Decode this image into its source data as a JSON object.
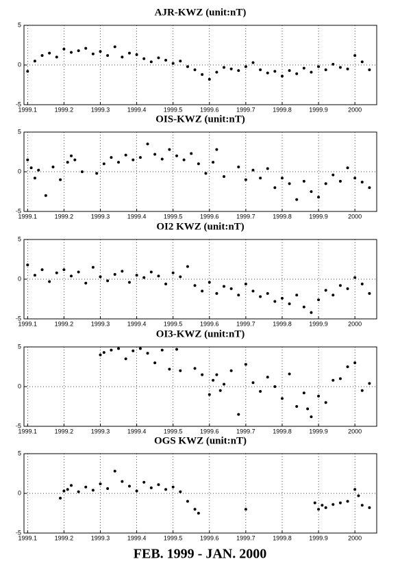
{
  "chart_data": [
    {
      "type": "scatter",
      "title": "AJR-KWZ (unit:nT)",
      "color": "#000000",
      "grid": true,
      "xlim": [
        1999.09,
        2000.06
      ],
      "ylim": [
        -5,
        5
      ],
      "xticks": [
        1999.1,
        1999.2,
        1999.3,
        1999.4,
        1999.5,
        1999.6,
        1999.7,
        1999.8,
        1999.9,
        2000
      ],
      "yticks": [
        -5,
        0,
        5
      ],
      "x": [
        1999.1,
        1999.12,
        1999.14,
        1999.16,
        1999.18,
        1999.2,
        1999.22,
        1999.24,
        1999.26,
        1999.28,
        1999.3,
        1999.32,
        1999.34,
        1999.36,
        1999.38,
        1999.4,
        1999.42,
        1999.44,
        1999.46,
        1999.48,
        1999.5,
        1999.52,
        1999.54,
        1999.56,
        1999.58,
        1999.6,
        1999.62,
        1999.64,
        1999.66,
        1999.68,
        1999.7,
        1999.72,
        1999.74,
        1999.76,
        1999.78,
        1999.8,
        1999.82,
        1999.84,
        1999.86,
        1999.88,
        1999.9,
        1999.92,
        1999.94,
        1999.96,
        1999.98,
        2000.0,
        2000.02,
        2000.04
      ],
      "values": [
        -0.8,
        0.5,
        1.2,
        1.5,
        1.0,
        2.0,
        1.6,
        1.8,
        2.1,
        1.4,
        1.7,
        1.2,
        2.3,
        1.0,
        1.5,
        1.3,
        0.8,
        0.4,
        0.9,
        0.6,
        0.2,
        0.5,
        -0.2,
        -0.6,
        -1.2,
        -1.8,
        -0.9,
        -0.3,
        -0.5,
        -0.7,
        -0.2,
        0.3,
        -0.6,
        -1.0,
        -0.8,
        -1.4,
        -0.7,
        -1.1,
        -0.4,
        -0.9,
        -0.2,
        -0.6,
        0.1,
        -0.3,
        -0.5,
        1.2,
        0.4,
        -0.6
      ]
    },
    {
      "type": "scatter",
      "title": "OIS-KWZ (unit:nT)",
      "color": "#000000",
      "grid": true,
      "xlim": [
        1999.09,
        2000.06
      ],
      "ylim": [
        -5,
        5
      ],
      "xticks": [
        1999.1,
        1999.2,
        1999.3,
        1999.4,
        1999.5,
        1999.6,
        1999.7,
        1999.8,
        1999.9,
        2000
      ],
      "yticks": [
        -5,
        0,
        5
      ],
      "x": [
        1999.1,
        1999.11,
        1999.12,
        1999.13,
        1999.15,
        1999.17,
        1999.19,
        1999.21,
        1999.22,
        1999.23,
        1999.25,
        1999.29,
        1999.31,
        1999.33,
        1999.35,
        1999.37,
        1999.39,
        1999.41,
        1999.43,
        1999.45,
        1999.47,
        1999.49,
        1999.51,
        1999.53,
        1999.55,
        1999.57,
        1999.59,
        1999.61,
        1999.62,
        1999.64,
        1999.68,
        1999.7,
        1999.72,
        1999.74,
        1999.76,
        1999.78,
        1999.8,
        1999.82,
        1999.84,
        1999.86,
        1999.88,
        1999.9,
        1999.92,
        1999.94,
        1999.96,
        1999.98,
        2000.0,
        2000.02,
        2000.04
      ],
      "values": [
        1.5,
        0.5,
        -0.8,
        0.2,
        -3.0,
        0.6,
        -1.0,
        1.2,
        2.0,
        1.5,
        0.0,
        -0.2,
        1.0,
        1.8,
        1.2,
        2.1,
        1.5,
        1.8,
        3.5,
        2.2,
        1.6,
        2.8,
        2.0,
        1.5,
        2.3,
        1.0,
        -0.2,
        1.2,
        2.8,
        -0.6,
        0.6,
        -1.0,
        0.2,
        -0.8,
        0.4,
        -2.0,
        -0.8,
        -1.5,
        -3.5,
        -1.2,
        -2.5,
        -3.2,
        -1.5,
        -0.4,
        -1.2,
        0.5,
        -0.8,
        -1.3,
        -2.0
      ]
    },
    {
      "type": "scatter",
      "title": "OI2 KWZ (unit:nT)",
      "color": "#000000",
      "grid": true,
      "xlim": [
        1999.09,
        2000.06
      ],
      "ylim": [
        -5,
        5
      ],
      "xticks": [
        1999.1,
        1999.2,
        1999.3,
        1999.4,
        1999.5,
        1999.6,
        1999.7,
        1999.8,
        1999.9,
        2000
      ],
      "yticks": [
        -5,
        0,
        5
      ],
      "x": [
        1999.1,
        1999.12,
        1999.14,
        1999.16,
        1999.18,
        1999.2,
        1999.22,
        1999.24,
        1999.26,
        1999.28,
        1999.3,
        1999.32,
        1999.34,
        1999.36,
        1999.38,
        1999.4,
        1999.42,
        1999.44,
        1999.46,
        1999.48,
        1999.5,
        1999.52,
        1999.54,
        1999.56,
        1999.58,
        1999.6,
        1999.62,
        1999.64,
        1999.66,
        1999.68,
        1999.7,
        1999.72,
        1999.74,
        1999.76,
        1999.78,
        1999.8,
        1999.82,
        1999.84,
        1999.86,
        1999.88,
        1999.9,
        1999.92,
        1999.94,
        1999.96,
        1999.98,
        2000.0,
        2000.02,
        2000.04
      ],
      "values": [
        1.8,
        0.5,
        1.2,
        -0.3,
        0.8,
        1.2,
        0.4,
        0.9,
        -0.5,
        1.5,
        0.3,
        -0.2,
        0.6,
        1.0,
        -0.4,
        0.5,
        0.2,
        0.9,
        0.4,
        -0.6,
        0.8,
        0.3,
        1.6,
        -0.8,
        -1.5,
        -0.4,
        -1.8,
        -0.9,
        -1.2,
        -2.0,
        -0.6,
        -1.5,
        -2.2,
        -1.8,
        -2.8,
        -2.4,
        -3.1,
        -2.0,
        -3.5,
        -4.2,
        -2.6,
        -1.4,
        -2.0,
        -0.8,
        -1.2,
        0.2,
        -0.6,
        -1.8
      ]
    },
    {
      "type": "scatter",
      "title": "OI3-KWZ (unit:nT)",
      "color": "#000000",
      "grid": true,
      "xlim": [
        1999.09,
        2000.06
      ],
      "ylim": [
        -5,
        5
      ],
      "xticks": [
        1999.1,
        1999.2,
        1999.3,
        1999.4,
        1999.5,
        1999.6,
        1999.7,
        1999.8,
        1999.9,
        2000
      ],
      "yticks": [
        -5,
        0,
        5
      ],
      "x": [
        1999.3,
        1999.31,
        1999.33,
        1999.35,
        1999.37,
        1999.39,
        1999.41,
        1999.43,
        1999.45,
        1999.47,
        1999.49,
        1999.51,
        1999.52,
        1999.56,
        1999.58,
        1999.6,
        1999.61,
        1999.62,
        1999.63,
        1999.64,
        1999.66,
        1999.68,
        1999.7,
        1999.72,
        1999.74,
        1999.76,
        1999.78,
        1999.8,
        1999.82,
        1999.84,
        1999.86,
        1999.87,
        1999.88,
        1999.9,
        1999.92,
        1999.94,
        1999.96,
        1999.98,
        2000.0,
        2000.02,
        2000.04
      ],
      "values": [
        4.0,
        4.3,
        4.6,
        4.8,
        3.5,
        4.5,
        4.8,
        4.2,
        3.0,
        4.6,
        2.2,
        4.7,
        2.0,
        2.3,
        1.5,
        -1.0,
        0.8,
        1.5,
        -0.5,
        0.3,
        2.0,
        -3.5,
        2.8,
        0.5,
        -0.6,
        1.2,
        0.0,
        -1.5,
        1.6,
        -2.5,
        -0.8,
        -2.8,
        -3.8,
        -1.2,
        -2.0,
        0.8,
        1.0,
        2.5,
        3.0,
        -0.5,
        0.4
      ]
    },
    {
      "type": "scatter",
      "title": "OGS KWZ (unit:nT)",
      "color": "#000000",
      "grid": true,
      "xlim": [
        1999.09,
        2000.06
      ],
      "ylim": [
        -5,
        5
      ],
      "xticks": [
        1999.1,
        1999.2,
        1999.3,
        1999.4,
        1999.5,
        1999.6,
        1999.7,
        1999.8,
        1999.9,
        2000
      ],
      "yticks": [
        -5,
        0,
        5
      ],
      "x": [
        1999.19,
        1999.2,
        1999.21,
        1999.22,
        1999.24,
        1999.26,
        1999.28,
        1999.3,
        1999.32,
        1999.34,
        1999.36,
        1999.38,
        1999.4,
        1999.42,
        1999.44,
        1999.46,
        1999.48,
        1999.5,
        1999.52,
        1999.54,
        1999.56,
        1999.57,
        1999.7,
        1999.89,
        1999.9,
        1999.91,
        1999.92,
        1999.94,
        1999.96,
        1999.98,
        2000.0,
        2000.01,
        2000.02,
        2000.04
      ],
      "values": [
        -0.6,
        0.3,
        0.5,
        1.0,
        0.2,
        0.8,
        0.4,
        1.2,
        0.6,
        2.8,
        1.5,
        0.9,
        0.3,
        1.4,
        0.7,
        1.1,
        0.5,
        0.8,
        0.2,
        -1.0,
        -2.0,
        -2.5,
        -2.0,
        -1.2,
        -2.0,
        -1.5,
        -1.8,
        -1.4,
        -1.2,
        -1.0,
        0.5,
        -0.3,
        -1.5,
        -1.8
      ]
    }
  ],
  "caption": "FEB. 1999 - JAN. 2000"
}
